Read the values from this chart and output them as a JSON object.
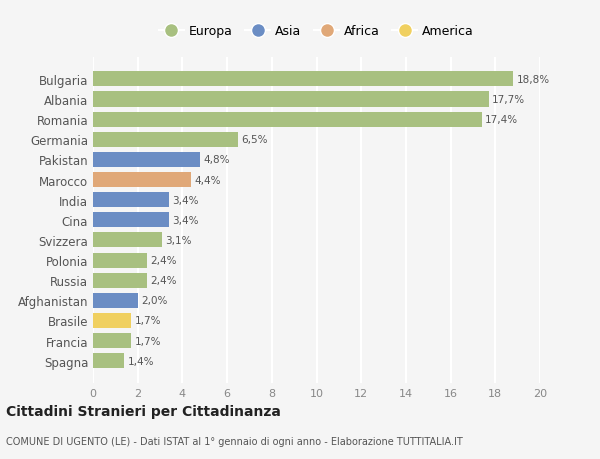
{
  "categories": [
    "Bulgaria",
    "Albania",
    "Romania",
    "Germania",
    "Pakistan",
    "Marocco",
    "India",
    "Cina",
    "Svizzera",
    "Polonia",
    "Russia",
    "Afghanistan",
    "Brasile",
    "Francia",
    "Spagna"
  ],
  "values": [
    18.8,
    17.7,
    17.4,
    6.5,
    4.8,
    4.4,
    3.4,
    3.4,
    3.1,
    2.4,
    2.4,
    2.0,
    1.7,
    1.7,
    1.4
  ],
  "labels": [
    "18,8%",
    "17,7%",
    "17,4%",
    "6,5%",
    "4,8%",
    "4,4%",
    "3,4%",
    "3,4%",
    "3,1%",
    "2,4%",
    "2,4%",
    "2,0%",
    "1,7%",
    "1,7%",
    "1,4%"
  ],
  "continents": [
    "Europa",
    "Europa",
    "Europa",
    "Europa",
    "Asia",
    "Africa",
    "Asia",
    "Asia",
    "Europa",
    "Europa",
    "Europa",
    "Asia",
    "America",
    "Europa",
    "Europa"
  ],
  "continent_colors": {
    "Europa": "#a8c080",
    "Asia": "#6b8dc4",
    "Africa": "#e0a878",
    "America": "#f0d060"
  },
  "legend_labels": [
    "Europa",
    "Asia",
    "Africa",
    "America"
  ],
  "legend_colors": [
    "#a8c080",
    "#6b8dc4",
    "#e0a878",
    "#f0d060"
  ],
  "title": "Cittadini Stranieri per Cittadinanza",
  "subtitle": "COMUNE DI UGENTO (LE) - Dati ISTAT al 1° gennaio di ogni anno - Elaborazione TUTTITALIA.IT",
  "xlim": [
    0,
    20
  ],
  "xticks": [
    0,
    2,
    4,
    6,
    8,
    10,
    12,
    14,
    16,
    18,
    20
  ],
  "background_color": "#f5f5f5",
  "grid_color": "#ffffff",
  "bar_height": 0.75
}
